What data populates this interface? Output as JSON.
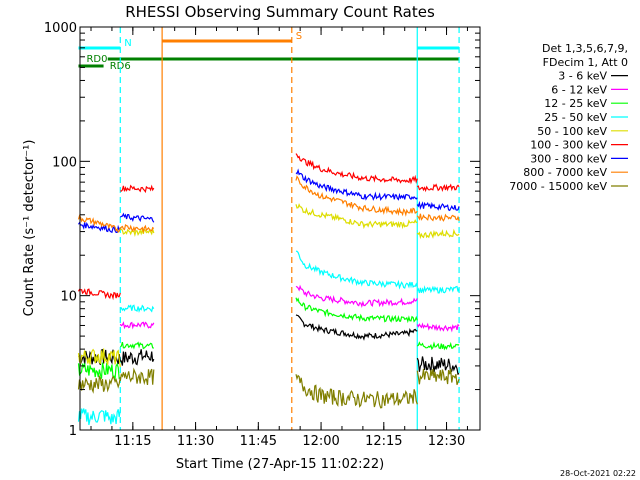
{
  "chart_data": {
    "type": "line",
    "title": "RHESSI Observing Summary Count Rates",
    "xlabel": "Start Time (27-Apr-15 11:02:22)",
    "ylabel": "Count Rate (s⁻¹ detector⁻¹)",
    "xlim": [
      "11:02:22",
      "12:38:00"
    ],
    "ylim": [
      1,
      1000
    ],
    "yscale": "log",
    "x_ticks": [
      "11:15",
      "11:30",
      "11:45",
      "12:00",
      "12:15",
      "12:30"
    ],
    "y_ticks": [
      "1",
      "10",
      "100",
      "1000"
    ],
    "footer_date": "28-Oct-2021 02:22",
    "legend": {
      "header": [
        "Det 1,3,5,6,7,9,",
        "FDecim 1, Att 0"
      ],
      "position": "right"
    },
    "series": [
      {
        "name": "3 - 6 keV",
        "color": "#000000",
        "segments": [
          {
            "x": [
              "11:02",
              "11:10",
              "11:12",
              "11:15",
              "11:20"
            ],
            "y": [
              3.5,
              3.5,
              3.4,
              3.5,
              3.6
            ]
          },
          {
            "x": [
              "11:54",
              "11:56",
              "12:00",
              "12:10",
              "12:20",
              "12:23"
            ],
            "y": [
              7,
              6.2,
              5.6,
              5.0,
              5.2,
              5.5
            ]
          },
          {
            "x": [
              "12:23",
              "12:28",
              "12:33"
            ],
            "y": [
              3.1,
              3.1,
              3.0
            ]
          }
        ]
      },
      {
        "name": "6 - 12 keV",
        "color": "#ff00ff",
        "segments": [
          {
            "x": [
              "11:12",
              "11:15",
              "11:20"
            ],
            "y": [
              6,
              6.1,
              6.0
            ]
          },
          {
            "x": [
              "11:54",
              "11:56",
              "12:00",
              "12:10",
              "12:20",
              "12:23"
            ],
            "y": [
              12,
              10.5,
              9.6,
              8.8,
              9.0,
              9.2
            ]
          },
          {
            "x": [
              "12:23",
              "12:28",
              "12:33"
            ],
            "y": [
              6,
              5.8,
              5.8
            ]
          }
        ]
      },
      {
        "name": "12 - 25 keV",
        "color": "#00ff00",
        "segments": [
          {
            "x": [
              "11:02",
              "11:10",
              "11:12"
            ],
            "y": [
              2.8,
              2.8,
              2.8
            ]
          },
          {
            "x": [
              "11:12",
              "11:15",
              "11:20"
            ],
            "y": [
              4.3,
              4.3,
              4.2
            ]
          },
          {
            "x": [
              "11:54",
              "11:56",
              "12:00",
              "12:10",
              "12:20",
              "12:23"
            ],
            "y": [
              9.5,
              8.3,
              7.6,
              6.8,
              6.7,
              6.8
            ]
          },
          {
            "x": [
              "12:23",
              "12:28",
              "12:33"
            ],
            "y": [
              4.3,
              4.2,
              4.2
            ]
          }
        ]
      },
      {
        "name": "25 - 50 keV",
        "color": "#00ffff",
        "segments": [
          {
            "x": [
              "11:02",
              "11:05",
              "11:08",
              "11:10",
              "11:12"
            ],
            "y": [
              1.3,
              1.25,
              1.3,
              1.2,
              1.3
            ]
          },
          {
            "x": [
              "11:12",
              "11:15",
              "11:20"
            ],
            "y": [
              8,
              8.1,
              8.0
            ]
          },
          {
            "x": [
              "11:54",
              "11:56",
              "12:00",
              "12:05",
              "12:10",
              "12:20",
              "12:23"
            ],
            "y": [
              22,
              17,
              15,
              13.5,
              12.5,
              12,
              12.2
            ]
          },
          {
            "x": [
              "12:23",
              "12:28",
              "12:33"
            ],
            "y": [
              11,
              11,
              11.2
            ]
          }
        ]
      },
      {
        "name": "50 - 100 keV",
        "color": "#dddd00",
        "segments": [
          {
            "x": [
              "11:02",
              "11:08",
              "11:12"
            ],
            "y": [
              3.5,
              3.6,
              3.4
            ]
          },
          {
            "x": [
              "11:12",
              "11:15",
              "11:20"
            ],
            "y": [
              30,
              29.5,
              30
            ]
          },
          {
            "x": [
              "11:54",
              "11:56",
              "12:00",
              "12:05",
              "12:10",
              "12:20",
              "12:23"
            ],
            "y": [
              48,
              43,
              40,
              37,
              34,
              34,
              35
            ]
          },
          {
            "x": [
              "12:23",
              "12:28",
              "12:33"
            ],
            "y": [
              28,
              29,
              29
            ]
          }
        ]
      },
      {
        "name": "100 - 300 keV",
        "color": "#ff0000",
        "segments": [
          {
            "x": [
              "11:02",
              "11:05",
              "11:08",
              "11:10",
              "11:12"
            ],
            "y": [
              11,
              10.6,
              10.3,
              10,
              10.2
            ]
          },
          {
            "x": [
              "11:12",
              "11:15",
              "11:20"
            ],
            "y": [
              63,
              63,
              62
            ]
          },
          {
            "x": [
              "11:54",
              "11:56",
              "12:00",
              "12:05",
              "12:10",
              "12:20",
              "12:23"
            ],
            "y": [
              115,
              100,
              88,
              80,
              75,
              72,
              73
            ]
          },
          {
            "x": [
              "12:23",
              "12:28",
              "12:33"
            ],
            "y": [
              63,
              64,
              64
            ]
          }
        ]
      },
      {
        "name": "300 - 800 keV",
        "color": "#0000ff",
        "segments": [
          {
            "x": [
              "11:02",
              "11:05",
              "11:08",
              "11:10",
              "11:12"
            ],
            "y": [
              34,
              33,
              32,
              31,
              31
            ]
          },
          {
            "x": [
              "11:12",
              "11:15",
              "11:20"
            ],
            "y": [
              39,
              38,
              37
            ]
          },
          {
            "x": [
              "11:54",
              "11:56",
              "12:00",
              "12:05",
              "12:10",
              "12:20",
              "12:23"
            ],
            "y": [
              85,
              75,
              65,
              60,
              55,
              54,
              55
            ]
          },
          {
            "x": [
              "12:23",
              "12:28",
              "12:33"
            ],
            "y": [
              47,
              46,
              45
            ]
          }
        ]
      },
      {
        "name": "800 - 7000 keV",
        "color": "#ff7f00",
        "segments": [
          {
            "x": [
              "11:02",
              "11:05",
              "11:08",
              "11:10",
              "11:12"
            ],
            "y": [
              38,
              36,
              34,
              32,
              31
            ]
          },
          {
            "x": [
              "11:12",
              "11:15",
              "11:20"
            ],
            "y": [
              33,
              32,
              31
            ]
          },
          {
            "x": [
              "11:54",
              "11:56",
              "12:00",
              "12:05",
              "12:10",
              "12:20",
              "12:23"
            ],
            "y": [
              75,
              65,
              55,
              50,
              45,
              42,
              43
            ]
          },
          {
            "x": [
              "12:23",
              "12:28",
              "12:33"
            ],
            "y": [
              39,
              38,
              38
            ]
          }
        ]
      },
      {
        "name": "7000 - 15000 keV",
        "color": "#807f00",
        "segments": [
          {
            "x": [
              "11:02",
              "11:10",
              "11:12"
            ],
            "y": [
              2.2,
              2.2,
              2.2
            ]
          },
          {
            "x": [
              "11:12",
              "11:15",
              "11:20"
            ],
            "y": [
              2.5,
              2.5,
              2.5
            ]
          },
          {
            "x": [
              "11:54",
              "11:56",
              "12:00",
              "12:10",
              "12:20",
              "12:23"
            ],
            "y": [
              2.4,
              2.1,
              1.8,
              1.7,
              1.7,
              1.8
            ]
          },
          {
            "x": [
              "12:23",
              "12:28",
              "12:33"
            ],
            "y": [
              2.5,
              2.5,
              2.5
            ]
          }
        ]
      }
    ],
    "flags": [
      {
        "label": "N",
        "color": "#00ffff",
        "segments": [
          [
            "11:02",
            "11:12"
          ],
          [
            "12:23",
            "12:33"
          ]
        ]
      },
      {
        "label": "S",
        "color": "#ff7f00",
        "segments": [
          [
            "11:22",
            "11:53"
          ]
        ]
      },
      {
        "label": "RD0",
        "color": "#008000",
        "segments": [
          [
            "11:02",
            "11:08"
          ]
        ]
      },
      {
        "label": "RD6",
        "color": "#008000",
        "segments": [
          [
            "11:09",
            "12:33"
          ]
        ]
      }
    ],
    "event_lines": [
      {
        "x": "11:12",
        "color": "#00ffff",
        "style": "dashed"
      },
      {
        "x": "11:22",
        "color": "#ff7f00",
        "style": "solid"
      },
      {
        "x": "11:53",
        "color": "#ff7f00",
        "style": "dashed"
      },
      {
        "x": "12:23",
        "color": "#00ffff",
        "style": "solid"
      },
      {
        "x": "12:33",
        "color": "#00ffff",
        "style": "dashed"
      }
    ]
  }
}
